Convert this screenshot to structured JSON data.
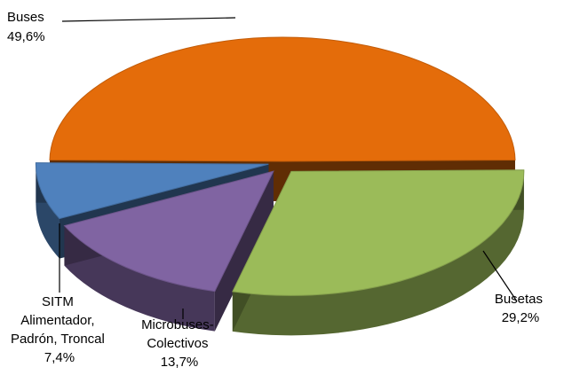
{
  "chart_data": {
    "type": "pie",
    "title": "",
    "slices": [
      {
        "name": "Buses",
        "value": 49.6,
        "label": "49,6%",
        "color": "#E46C0A",
        "exploded": false
      },
      {
        "name": "Busetas",
        "value": 29.2,
        "label": "29,2%",
        "color": "#9BBB59",
        "exploded": true
      },
      {
        "name": "Microbuses-Colectivos",
        "value": 13.7,
        "label": "13,7%",
        "color": "#8064A2",
        "exploded": true
      },
      {
        "name": "SITM Alimentador, Padrón, Troncal",
        "value": 7.4,
        "label": "7,4%",
        "color": "#4F81BD",
        "exploded": true
      }
    ],
    "labels": {
      "buses": [
        "Buses",
        "49,6%"
      ],
      "busetas": [
        "Busetas",
        "29,2%"
      ],
      "micro": [
        "Microbuses-",
        "Colectivos",
        "13,7%"
      ],
      "sitm": [
        "SITM",
        "Alimentador,",
        "Padrón, Troncal",
        "7,4%"
      ]
    },
    "legend": "none",
    "style": "3d-exploded-pie"
  }
}
